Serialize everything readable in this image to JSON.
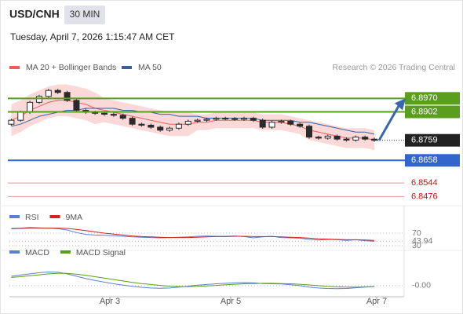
{
  "header": {
    "symbol": "USD/CNH",
    "interval": "30 MIN",
    "timestamp": "Tuesday, April 7, 2026 1:15:47 AM CET",
    "credit": "Research © 2026 Trading Central"
  },
  "chart_data": [
    {
      "type": "candlestick",
      "candle_color": "#2b2b2b",
      "xlim": [
        -0.2,
        42.2
      ],
      "ylim": [
        6.843,
        6.907
      ],
      "open": [
        6.884,
        6.886,
        6.89,
        6.895,
        6.898,
        6.901,
        6.9,
        6.896,
        6.891,
        6.89,
        6.8895,
        6.889,
        6.8885,
        6.887,
        6.884,
        6.8835,
        6.8825,
        6.881,
        6.882,
        6.884,
        6.8855,
        6.886,
        6.8865,
        6.887,
        6.8868,
        6.8865,
        6.887,
        6.886,
        6.8825,
        6.885,
        6.8855,
        6.884,
        6.883,
        6.8775,
        6.877,
        6.878,
        6.8765,
        6.876,
        6.8775,
        6.8765
      ],
      "high": [
        6.8868,
        6.8908,
        6.8958,
        6.8988,
        6.9018,
        6.9018,
        6.9008,
        6.8968,
        6.8918,
        6.8908,
        6.8903,
        6.8898,
        6.8893,
        6.8878,
        6.8848,
        6.8843,
        6.8833,
        6.8828,
        6.8848,
        6.8863,
        6.8868,
        6.8873,
        6.8878,
        6.8878,
        6.8876,
        6.8878,
        6.8878,
        6.8868,
        6.8858,
        6.8863,
        6.8863,
        6.8848,
        6.8838,
        6.8783,
        6.8788,
        6.8788,
        6.8773,
        6.8783,
        6.8783,
        6.8773
      ],
      "low": [
        6.8832,
        6.8852,
        6.8892,
        6.8942,
        6.8972,
        6.8992,
        6.8952,
        6.8902,
        6.8892,
        6.8887,
        6.8882,
        6.8877,
        6.8862,
        6.8832,
        6.8827,
        6.8817,
        6.8802,
        6.8802,
        6.8812,
        6.8832,
        6.8847,
        6.8852,
        6.8857,
        6.886,
        6.8857,
        6.8857,
        6.8852,
        6.8817,
        6.8817,
        6.8842,
        6.8832,
        6.8822,
        6.8767,
        6.8762,
        6.8762,
        6.8757,
        6.8752,
        6.8752,
        6.8757,
        6.8751
      ],
      "close": [
        6.886,
        6.89,
        6.895,
        6.898,
        6.901,
        6.9,
        6.896,
        6.891,
        6.89,
        6.8895,
        6.889,
        6.8885,
        6.887,
        6.884,
        6.8835,
        6.8825,
        6.881,
        6.882,
        6.884,
        6.8855,
        6.886,
        6.8865,
        6.887,
        6.8868,
        6.8865,
        6.887,
        6.886,
        6.8825,
        6.885,
        6.8855,
        6.884,
        6.883,
        6.8775,
        6.877,
        6.878,
        6.8765,
        6.876,
        6.8775,
        6.8765,
        6.8759
      ],
      "overlays": [
        {
          "name": "MA 20 + Bollinger Bands",
          "color": "#e8605a",
          "band_color": "#fcd9d9",
          "values": [
            6.886,
            6.888,
            6.891,
            6.893,
            6.895,
            6.896,
            6.896,
            6.895,
            6.894,
            6.892,
            6.891,
            6.89,
            6.889,
            6.888,
            6.887,
            6.886,
            6.885,
            6.884,
            6.884,
            6.884,
            6.885,
            6.885,
            6.886,
            6.886,
            6.886,
            6.886,
            6.886,
            6.885,
            6.885,
            6.885,
            6.884,
            6.883,
            6.881,
            6.88,
            6.879,
            6.878,
            6.877,
            6.877,
            6.877,
            6.876
          ],
          "upper": [
            6.894,
            6.896,
            6.899,
            6.901,
            6.903,
            6.904,
            6.904,
            6.903,
            6.902,
            6.9,
            6.897,
            6.896,
            6.895,
            6.894,
            6.893,
            6.892,
            6.891,
            6.89,
            6.89,
            6.89,
            6.889,
            6.889,
            6.89,
            6.89,
            6.89,
            6.89,
            6.89,
            6.889,
            6.889,
            6.889,
            6.888,
            6.887,
            6.886,
            6.885,
            6.884,
            6.883,
            6.882,
            6.882,
            6.882,
            6.881
          ],
          "lower": [
            6.878,
            6.88,
            6.883,
            6.885,
            6.887,
            6.888,
            6.888,
            6.887,
            6.886,
            6.884,
            6.885,
            6.884,
            6.883,
            6.882,
            6.881,
            6.88,
            6.879,
            6.878,
            6.878,
            6.878,
            6.881,
            6.881,
            6.882,
            6.882,
            6.882,
            6.882,
            6.882,
            6.881,
            6.881,
            6.881,
            6.88,
            6.879,
            6.876,
            6.875,
            6.874,
            6.873,
            6.872,
            6.872,
            6.872,
            6.871
          ]
        },
        {
          "name": "MA 50",
          "color": "#3a5f9a",
          "values": [
            6.883,
            6.884,
            6.886,
            6.888,
            6.889,
            6.89,
            6.891,
            6.891,
            6.892,
            6.892,
            6.892,
            6.892,
            6.891,
            6.891,
            6.89,
            6.89,
            6.889,
            6.889,
            6.888,
            6.888,
            6.888,
            6.887,
            6.887,
            6.887,
            6.887,
            6.887,
            6.887,
            6.886,
            6.886,
            6.886,
            6.886,
            6.885,
            6.885,
            6.884,
            6.883,
            6.882,
            6.881,
            6.88,
            6.88,
            6.879
          ]
        }
      ],
      "levels": [
        {
          "value": 6.897,
          "label": "6.8970",
          "color": "#5a9e1e",
          "label_style": "box"
        },
        {
          "value": 6.8902,
          "label": "6.8902",
          "color": "#5a9e1e",
          "label_style": "box"
        },
        {
          "value": 6.8759,
          "label": "6.8759",
          "color": "#222222",
          "label_style": "box",
          "dotted": true
        },
        {
          "value": 6.8658,
          "label": "6.8658",
          "color": "#3366cc",
          "label_style": "box"
        },
        {
          "value": 6.8544,
          "label": "6.8544",
          "color": "#cc1111",
          "label_style": "text"
        },
        {
          "value": 6.8476,
          "label": "6.8476",
          "color": "#cc1111",
          "label_style": "text"
        }
      ],
      "arrow_color": "#3a66b0"
    },
    {
      "type": "line",
      "xlim": [
        -0.2,
        42.2
      ],
      "ylim": [
        25,
        100
      ],
      "yticks": [
        70,
        43.94,
        30
      ],
      "series": [
        {
          "name": "RSI",
          "color": "#5b7fd1",
          "values": [
            85,
            86,
            88,
            87,
            86,
            84,
            80,
            72,
            66,
            64,
            63,
            62,
            60,
            58,
            57,
            56,
            55,
            56,
            57,
            58,
            60,
            61,
            60,
            60,
            61,
            59,
            55,
            58,
            60,
            56,
            55,
            54,
            50,
            48,
            50,
            49,
            47,
            49,
            46,
            43.94
          ]
        },
        {
          "name": "9MA",
          "color": "#d62020",
          "values": [
            84,
            85,
            86,
            86,
            86,
            86,
            85,
            82,
            78,
            74,
            70,
            67,
            64,
            61,
            59,
            58,
            57,
            56,
            56,
            56,
            57,
            58,
            59,
            59,
            60,
            60,
            59,
            59,
            59,
            58,
            57,
            56,
            54,
            52,
            51,
            50,
            49,
            49,
            48,
            47
          ]
        }
      ]
    },
    {
      "type": "line",
      "xlim": [
        -0.2,
        42.2
      ],
      "ylim": [
        -0.0047,
        0.0113
      ],
      "yticks": [
        {
          "value": 0,
          "label": "-0.00"
        }
      ],
      "xticks": [
        {
          "value": 10.59,
          "label": "Apr 3"
        },
        {
          "value": 23.57,
          "label": "Apr 5"
        },
        {
          "value": 39.25,
          "label": "Apr 7"
        }
      ],
      "series": [
        {
          "name": "MACD",
          "color": "#5b7fd1",
          "values": [
            0.004,
            0.0045,
            0.005,
            0.0055,
            0.0058,
            0.0057,
            0.005,
            0.004,
            0.003,
            0.0022,
            0.0015,
            0.0008,
            0.0002,
            -0.0003,
            -0.0007,
            -0.001,
            -0.0011,
            -0.001,
            -0.0006,
            -0.0002,
            0.0002,
            0.0005,
            0.0008,
            0.001,
            0.0012,
            0.0013,
            0.0012,
            0.0009,
            0.0008,
            0.0007,
            0.0004,
            0,
            -0.0006,
            -0.001,
            -0.0012,
            -0.0013,
            -0.0012,
            -0.0009,
            -0.0006,
            -0.0003
          ]
        },
        {
          "name": "MACD Signal",
          "color": "#5a9e1e",
          "values": [
            0.0035,
            0.0038,
            0.0042,
            0.0046,
            0.005,
            0.0052,
            0.0052,
            0.0049,
            0.0044,
            0.0038,
            0.0032,
            0.0026,
            0.002,
            0.0014,
            0.0009,
            0.0005,
            0.0001,
            -0.0002,
            -0.0004,
            -0.0004,
            -0.0003,
            -0.0001,
            0.0001,
            0.0004,
            0.0006,
            0.0008,
            0.0009,
            0.001,
            0.001,
            0.0009,
            0.0008,
            0.0006,
            0.0003,
            0,
            -0.0003,
            -0.0005,
            -0.0006,
            -0.0006,
            -0.0005,
            -0.0004
          ]
        }
      ]
    }
  ]
}
